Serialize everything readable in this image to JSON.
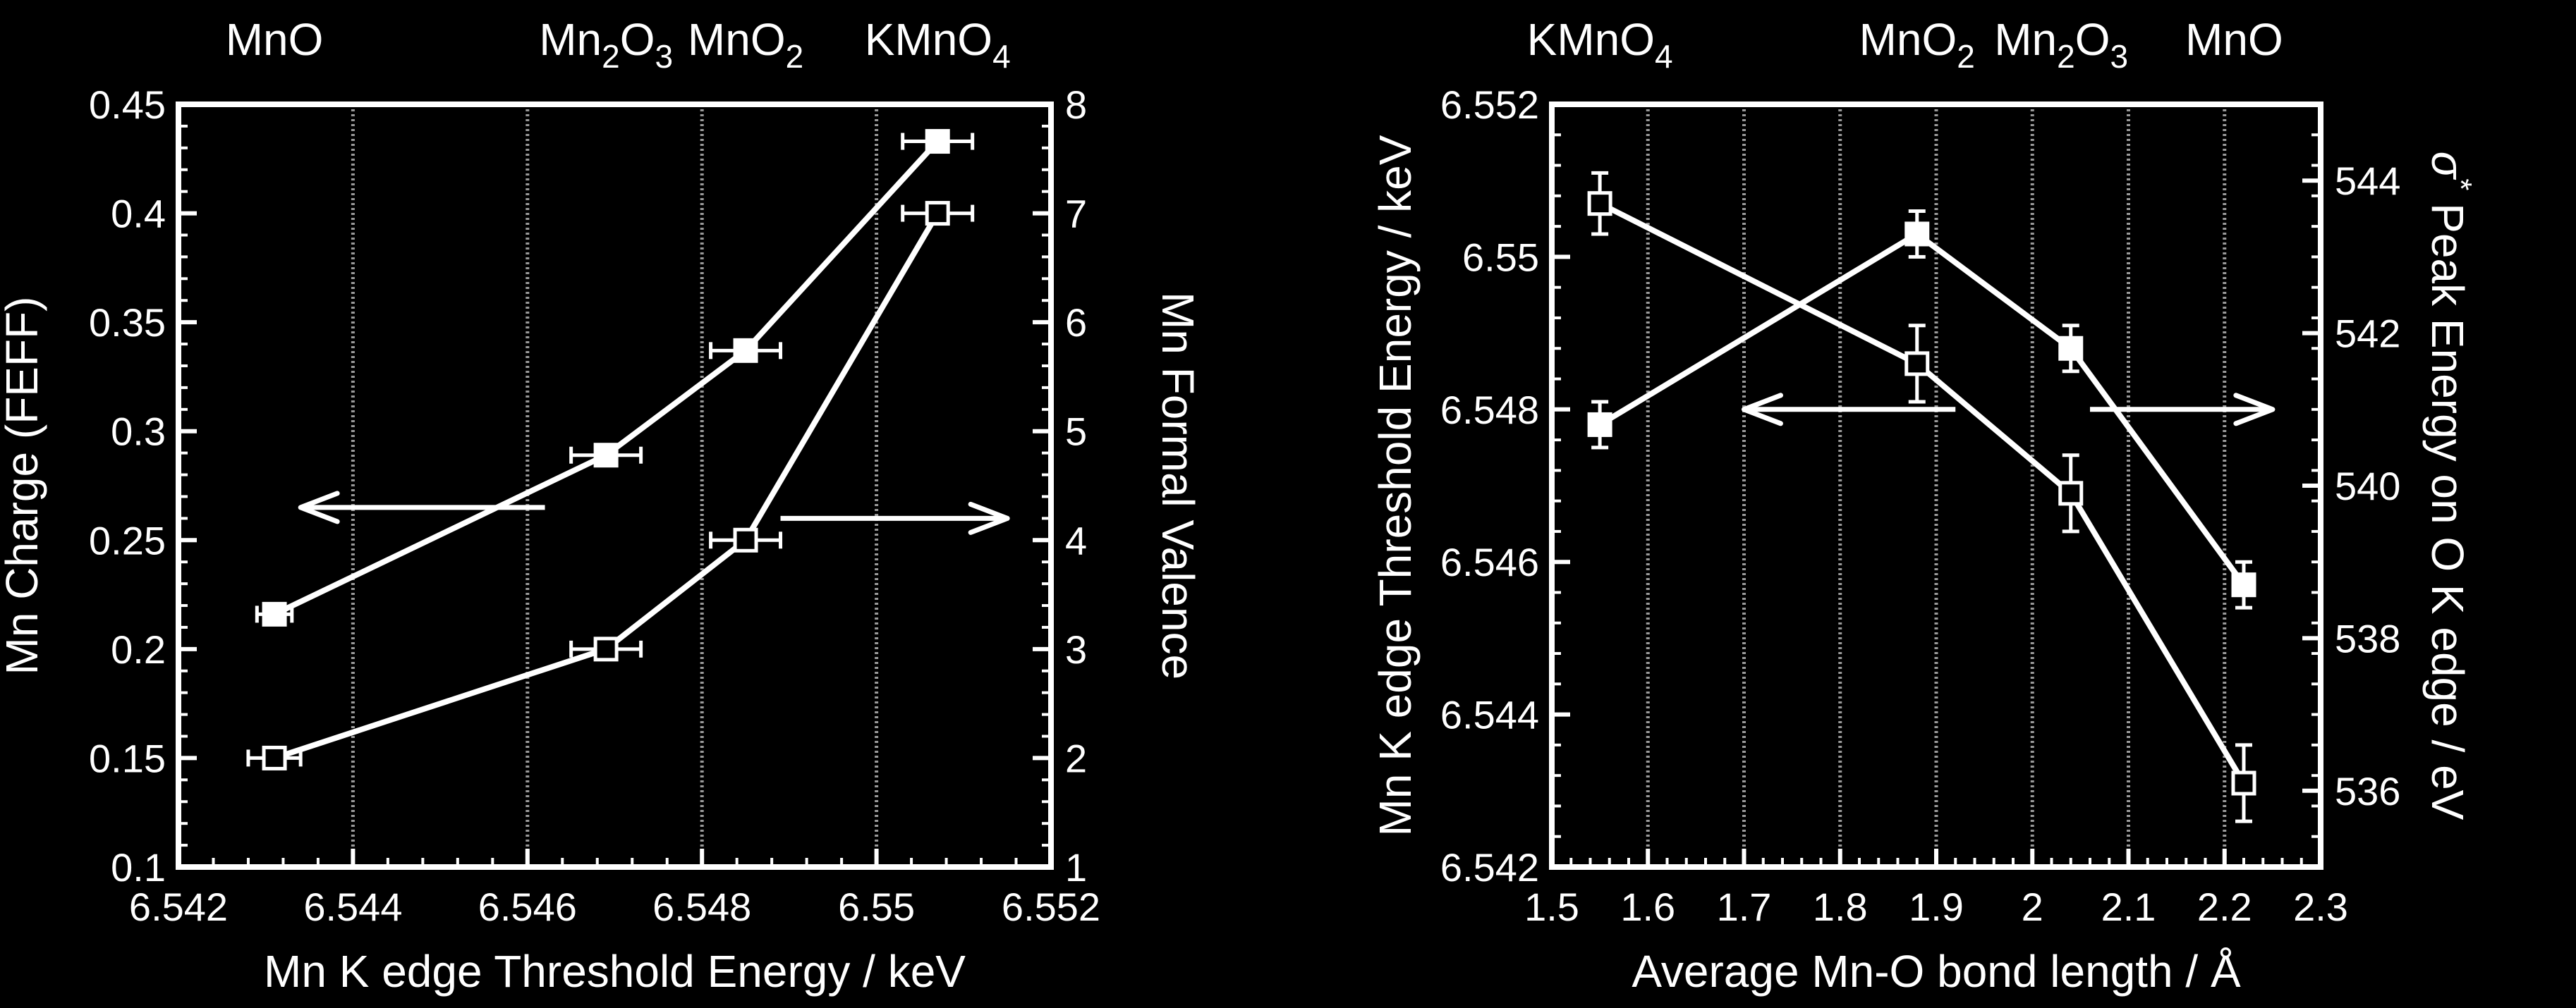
{
  "colors": {
    "background": "#000000",
    "foreground": "#ffffff",
    "grid": "#9a9a9a"
  },
  "chart_data": [
    {
      "type": "line",
      "xlabel": "Mn K edge Threshold Energy / keV",
      "ylabel": "Mn Charge (FEFF)",
      "y2label": "Mn Formal Valence",
      "xlim": [
        6.542,
        6.552
      ],
      "ylim": [
        0.1,
        0.45
      ],
      "y2lim": [
        1,
        8
      ],
      "xticks": [
        "6.542",
        "6.544",
        "6.546",
        "6.548",
        "6.55",
        "6.552"
      ],
      "yticks": [
        "0.1",
        "0.15",
        "0.2",
        "0.25",
        "0.3",
        "0.35",
        "0.4",
        "0.45"
      ],
      "y2ticks": [
        "1",
        "2",
        "3",
        "4",
        "5",
        "6",
        "7",
        "8"
      ],
      "grid": "vertical lines at compound positions",
      "top_labels": [
        {
          "main": "MnO",
          "x": 6.5431
        },
        {
          "main": "Mn",
          "sub1": "2",
          "mid": "O",
          "sub2": "3",
          "x": 6.5469
        },
        {
          "main": "MnO",
          "sub1": "2",
          "x": 6.5485
        },
        {
          "main": "KMnO",
          "sub1": "4",
          "x": 6.5507
        }
      ],
      "grid_x": [
        6.544,
        6.546,
        6.548,
        6.55
      ],
      "series": [
        {
          "axis": "left",
          "marker": "filled-square",
          "x": [
            6.5431,
            6.5469,
            6.5485,
            6.5507
          ],
          "y": [
            0.216,
            0.289,
            0.337,
            0.433
          ],
          "xerr": [
            0.0002,
            0.0004,
            0.0004,
            0.0004
          ]
        },
        {
          "axis": "right",
          "marker": "open-square",
          "x": [
            6.5431,
            6.5469,
            6.5485,
            6.5507
          ],
          "y": [
            2,
            3,
            4,
            7
          ],
          "xerr": [
            0.0003,
            0.0004,
            0.0004,
            0.0004
          ]
        }
      ],
      "arrows": [
        {
          "from": 6.5462,
          "to": 6.5434,
          "y": 0.265,
          "axis": "left"
        },
        {
          "from": 6.5489,
          "to": 6.5515,
          "y": 4.2,
          "axis": "right"
        }
      ]
    },
    {
      "type": "line",
      "xlabel": "Average Mn-O bond length / Å",
      "ylabel": "Mn K edge Threshold Energy / keV",
      "y2label_prefix": "σ",
      "y2label_sup": "*",
      "y2label": " Peak Energy on O K edge / eV",
      "xlim": [
        1.5,
        2.3
      ],
      "ylim": [
        6.542,
        6.552
      ],
      "y2lim": [
        535,
        545
      ],
      "xticks": [
        "1.5",
        "1.6",
        "1.7",
        "1.8",
        "1.9",
        "2",
        "2.1",
        "2.2",
        "2.3"
      ],
      "yticks": [
        "6.542",
        "6.544",
        "6.546",
        "6.548",
        "6.55",
        "6.552"
      ],
      "y2ticks": [
        "536",
        "538",
        "540",
        "542",
        "544"
      ],
      "grid": "vertical lines at 1.6 to 2.2 step 0.1",
      "top_labels": [
        {
          "main": "KMnO",
          "sub1": "4",
          "x": 1.55
        },
        {
          "main": "MnO",
          "sub1": "2",
          "x": 1.88
        },
        {
          "main": "Mn",
          "sub1": "2",
          "mid": "O",
          "sub2": "3",
          "x": 2.03
        },
        {
          "main": "MnO",
          "x": 2.21
        }
      ],
      "grid_x": [
        1.6,
        1.7,
        1.8,
        1.9,
        2.0,
        2.1,
        2.2
      ],
      "series": [
        {
          "axis": "left",
          "marker": "open-square",
          "x": [
            1.55,
            1.88,
            2.04,
            2.22
          ],
          "y": [
            6.5507,
            6.5486,
            6.5469,
            6.5431
          ],
          "yerr": [
            0.0004,
            0.0005,
            0.0005,
            0.0005
          ]
        },
        {
          "axis": "right",
          "marker": "filled-square",
          "x": [
            1.55,
            1.88,
            2.04,
            2.22
          ],
          "y": [
            540.8,
            543.3,
            541.8,
            538.7
          ],
          "yerr": [
            0.3,
            0.3,
            0.3,
            0.3
          ]
        }
      ],
      "arrows": [
        {
          "from": 1.92,
          "to": 1.7,
          "y": 541.0,
          "axis": "right"
        },
        {
          "from": 2.06,
          "to": 2.25,
          "y": 541.0,
          "axis": "right"
        }
      ]
    }
  ]
}
